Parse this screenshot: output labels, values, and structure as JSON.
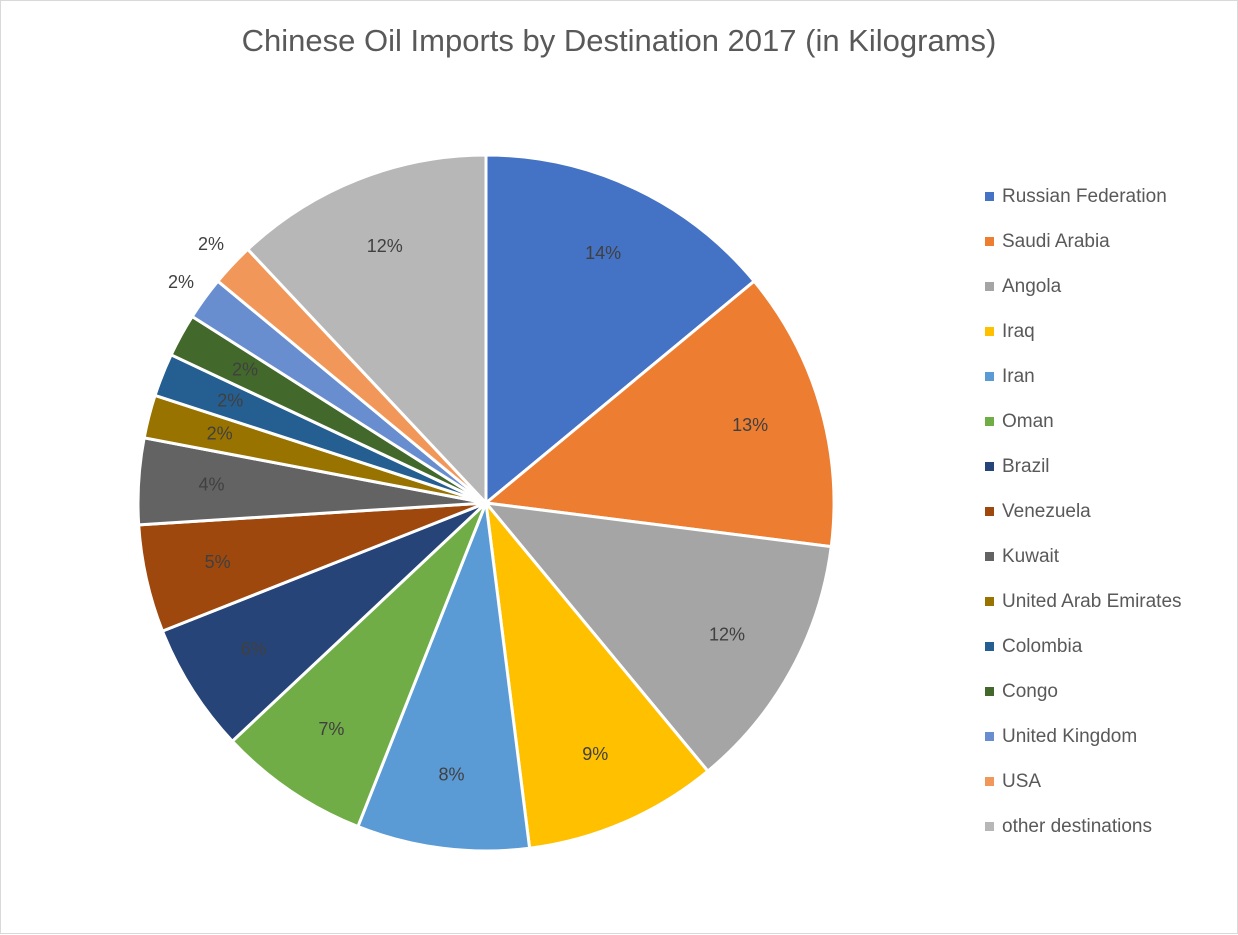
{
  "chart_data": {
    "type": "pie",
    "title": "Chinese Oil Imports by Destination 2017 (in Kilograms)",
    "legend_position": "right",
    "start_angle": "12 o'clock, clockwise",
    "slices": [
      {
        "name": "Russian Federation",
        "value": 14,
        "label": "14%",
        "color": "#4472c4"
      },
      {
        "name": "Saudi Arabia",
        "value": 13,
        "label": "13%",
        "color": "#ed7d31"
      },
      {
        "name": "Angola",
        "value": 12,
        "label": "12%",
        "color": "#a5a5a5"
      },
      {
        "name": "Iraq",
        "value": 9,
        "label": "9%",
        "color": "#ffc000"
      },
      {
        "name": "Iran",
        "value": 8,
        "label": "8%",
        "color": "#5b9bd5"
      },
      {
        "name": "Oman",
        "value": 7,
        "label": "7%",
        "color": "#70ad47"
      },
      {
        "name": "Brazil",
        "value": 6,
        "label": "6%",
        "color": "#264478"
      },
      {
        "name": "Venezuela",
        "value": 5,
        "label": "5%",
        "color": "#9e480e"
      },
      {
        "name": "Kuwait",
        "value": 4,
        "label": "4%",
        "color": "#636363"
      },
      {
        "name": "United Arab Emirates",
        "value": 2,
        "label": "2%",
        "color": "#997300"
      },
      {
        "name": "Colombia",
        "value": 2,
        "label": "2%",
        "color": "#255e91"
      },
      {
        "name": "Congo",
        "value": 2,
        "label": "2%",
        "color": "#43682b"
      },
      {
        "name": "United Kingdom",
        "value": 2,
        "label": "2%",
        "color": "#698ed0"
      },
      {
        "name": "USA",
        "value": 2,
        "label": "2%",
        "color": "#f1975a"
      },
      {
        "name": "other destinations",
        "value": 12,
        "label": "12%",
        "color": "#b7b7b7"
      }
    ]
  }
}
